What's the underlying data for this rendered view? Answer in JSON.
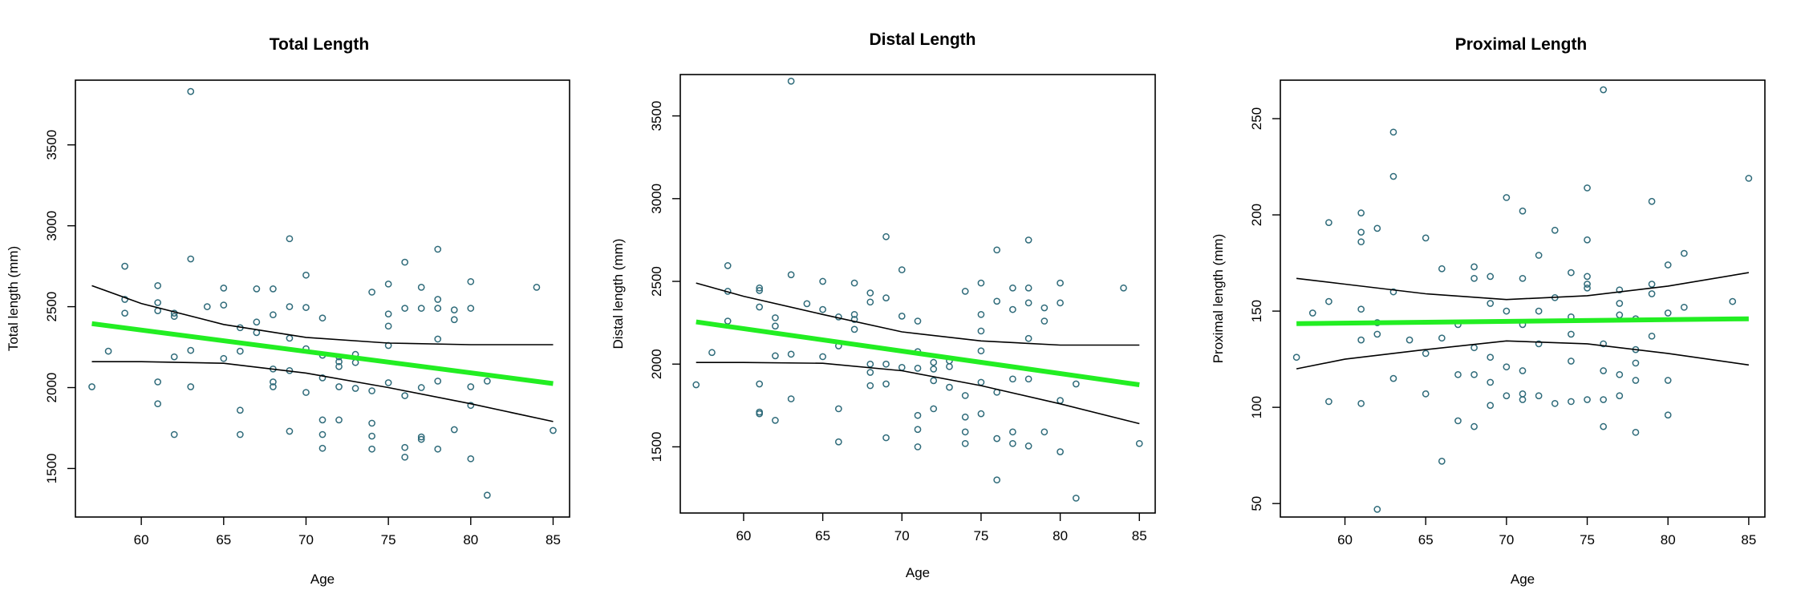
{
  "chart_data": [
    {
      "type": "scatter",
      "title": "Total Length",
      "xlabel": "Age",
      "ylabel": "Total length (mm)",
      "xlim": [
        56,
        86
      ],
      "ylim": [
        1200,
        3900
      ],
      "xticks": [
        60,
        65,
        70,
        75,
        80,
        85
      ],
      "yticks": [
        1500,
        2000,
        2500,
        3000,
        3500
      ],
      "point_color": "#2f6b7a",
      "fit_color": "#22ee22",
      "fit": {
        "x": [
          57,
          85
        ],
        "y": [
          2395,
          2025
        ]
      },
      "ci_upper": {
        "x": [
          57,
          60,
          65,
          70,
          75,
          80,
          85
        ],
        "y": [
          2630,
          2520,
          2390,
          2310,
          2275,
          2265,
          2265
        ]
      },
      "ci_lower": {
        "x": [
          57,
          60,
          65,
          70,
          75,
          80,
          85
        ],
        "y": [
          2160,
          2160,
          2150,
          2090,
          2000,
          1900,
          1790
        ]
      },
      "points": [
        [
          57,
          2005
        ],
        [
          58,
          2225
        ],
        [
          59,
          2750
        ],
        [
          59,
          2545
        ],
        [
          59,
          2460
        ],
        [
          61,
          2630
        ],
        [
          61,
          2525
        ],
        [
          61,
          2475
        ],
        [
          61,
          2035
        ],
        [
          61,
          1900
        ],
        [
          62,
          2460
        ],
        [
          62,
          2440
        ],
        [
          62,
          2190
        ],
        [
          62,
          1710
        ],
        [
          63,
          3830
        ],
        [
          63,
          2795
        ],
        [
          63,
          2230
        ],
        [
          63,
          2005
        ],
        [
          64,
          2500
        ],
        [
          65,
          2615
        ],
        [
          65,
          2510
        ],
        [
          65,
          2180
        ],
        [
          66,
          2370
        ],
        [
          66,
          2225
        ],
        [
          66,
          1860
        ],
        [
          66,
          1710
        ],
        [
          67,
          2610
        ],
        [
          67,
          2405
        ],
        [
          67,
          2340
        ],
        [
          68,
          2610
        ],
        [
          68,
          2450
        ],
        [
          68,
          2115
        ],
        [
          68,
          2035
        ],
        [
          68,
          2005
        ],
        [
          69,
          2920
        ],
        [
          69,
          2500
        ],
        [
          69,
          2305
        ],
        [
          69,
          2105
        ],
        [
          69,
          1730
        ],
        [
          70,
          2695
        ],
        [
          70,
          2495
        ],
        [
          70,
          2240
        ],
        [
          70,
          1970
        ],
        [
          71,
          2430
        ],
        [
          71,
          2200
        ],
        [
          71,
          2060
        ],
        [
          71,
          1800
        ],
        [
          71,
          1710
        ],
        [
          71,
          1625
        ],
        [
          72,
          2190
        ],
        [
          72,
          2160
        ],
        [
          72,
          2130
        ],
        [
          72,
          2005
        ],
        [
          72,
          1800
        ],
        [
          73,
          2205
        ],
        [
          73,
          2155
        ],
        [
          73,
          1995
        ],
        [
          74,
          2590
        ],
        [
          74,
          1980
        ],
        [
          74,
          1780
        ],
        [
          74,
          1700
        ],
        [
          74,
          1620
        ],
        [
          75,
          2640
        ],
        [
          75,
          2455
        ],
        [
          75,
          2380
        ],
        [
          75,
          2260
        ],
        [
          75,
          2030
        ],
        [
          76,
          2775
        ],
        [
          76,
          2490
        ],
        [
          76,
          1950
        ],
        [
          76,
          1630
        ],
        [
          76,
          1570
        ],
        [
          77,
          2620
        ],
        [
          77,
          2490
        ],
        [
          77,
          2000
        ],
        [
          77,
          1695
        ],
        [
          77,
          1680
        ],
        [
          78,
          2855
        ],
        [
          78,
          2545
        ],
        [
          78,
          2490
        ],
        [
          78,
          2300
        ],
        [
          78,
          2040
        ],
        [
          78,
          1620
        ],
        [
          79,
          2480
        ],
        [
          79,
          2420
        ],
        [
          79,
          1740
        ],
        [
          80,
          2655
        ],
        [
          80,
          2490
        ],
        [
          80,
          2005
        ],
        [
          80,
          1890
        ],
        [
          80,
          1560
        ],
        [
          81,
          2040
        ],
        [
          81,
          1335
        ],
        [
          84,
          2620
        ],
        [
          85,
          1735
        ]
      ]
    },
    {
      "type": "scatter",
      "title": "Distal Length",
      "xlabel": "Age",
      "ylabel": "Distal length (mm)",
      "xlim": [
        56,
        86
      ],
      "ylim": [
        1100,
        3750
      ],
      "xticks": [
        60,
        65,
        70,
        75,
        80,
        85
      ],
      "yticks": [
        1500,
        2000,
        2500,
        3000,
        3500
      ],
      "point_color": "#2f6b7a",
      "fit_color": "#22ee22",
      "fit": {
        "x": [
          57,
          85
        ],
        "y": [
          2255,
          1875
        ]
      },
      "ci_upper": {
        "x": [
          57,
          60,
          65,
          70,
          75,
          80,
          85
        ],
        "y": [
          2490,
          2410,
          2300,
          2195,
          2140,
          2115,
          2115
        ]
      },
      "ci_lower": {
        "x": [
          57,
          60,
          65,
          70,
          75,
          80,
          85
        ],
        "y": [
          2010,
          2010,
          2005,
          1960,
          1870,
          1760,
          1640
        ]
      },
      "points": [
        [
          57,
          1875
        ],
        [
          58,
          2070
        ],
        [
          59,
          2595
        ],
        [
          59,
          2440
        ],
        [
          59,
          2260
        ],
        [
          61,
          2460
        ],
        [
          61,
          2445
        ],
        [
          61,
          2345
        ],
        [
          61,
          1880
        ],
        [
          61,
          1710
        ],
        [
          61,
          1700
        ],
        [
          62,
          2280
        ],
        [
          62,
          2230
        ],
        [
          62,
          2050
        ],
        [
          62,
          1660
        ],
        [
          63,
          3710
        ],
        [
          63,
          2540
        ],
        [
          63,
          2060
        ],
        [
          63,
          1790
        ],
        [
          64,
          2365
        ],
        [
          65,
          2500
        ],
        [
          65,
          2330
        ],
        [
          65,
          2045
        ],
        [
          66,
          2285
        ],
        [
          66,
          2110
        ],
        [
          66,
          1730
        ],
        [
          66,
          1530
        ],
        [
          67,
          2490
        ],
        [
          67,
          2300
        ],
        [
          67,
          2270
        ],
        [
          67,
          2210
        ],
        [
          68,
          2430
        ],
        [
          68,
          2375
        ],
        [
          68,
          2000
        ],
        [
          68,
          1950
        ],
        [
          68,
          1870
        ],
        [
          69,
          2770
        ],
        [
          69,
          2400
        ],
        [
          69,
          2000
        ],
        [
          69,
          1880
        ],
        [
          69,
          1555
        ],
        [
          70,
          2570
        ],
        [
          70,
          2290
        ],
        [
          70,
          1980
        ],
        [
          71,
          2260
        ],
        [
          71,
          2075
        ],
        [
          71,
          1975
        ],
        [
          71,
          1690
        ],
        [
          71,
          1605
        ],
        [
          71,
          1500
        ],
        [
          72,
          2010
        ],
        [
          72,
          1970
        ],
        [
          72,
          1900
        ],
        [
          72,
          1730
        ],
        [
          73,
          2020
        ],
        [
          73,
          1985
        ],
        [
          73,
          1860
        ],
        [
          74,
          2440
        ],
        [
          74,
          1810
        ],
        [
          74,
          1680
        ],
        [
          74,
          1590
        ],
        [
          74,
          1520
        ],
        [
          75,
          2490
        ],
        [
          75,
          2300
        ],
        [
          75,
          2200
        ],
        [
          75,
          2080
        ],
        [
          75,
          1890
        ],
        [
          75,
          1700
        ],
        [
          76,
          2690
        ],
        [
          76,
          2380
        ],
        [
          76,
          1830
        ],
        [
          76,
          1550
        ],
        [
          76,
          1300
        ],
        [
          77,
          2460
        ],
        [
          77,
          2330
        ],
        [
          77,
          1910
        ],
        [
          77,
          1590
        ],
        [
          77,
          1520
        ],
        [
          78,
          2750
        ],
        [
          78,
          2460
        ],
        [
          78,
          2370
        ],
        [
          78,
          2155
        ],
        [
          78,
          1910
        ],
        [
          78,
          1505
        ],
        [
          79,
          2340
        ],
        [
          79,
          2260
        ],
        [
          79,
          1590
        ],
        [
          80,
          2490
        ],
        [
          80,
          2370
        ],
        [
          80,
          1780
        ],
        [
          80,
          1470
        ],
        [
          81,
          1880
        ],
        [
          81,
          1190
        ],
        [
          84,
          2460
        ],
        [
          85,
          1520
        ]
      ]
    },
    {
      "type": "scatter",
      "title": "Proximal Length",
      "xlabel": "Age",
      "ylabel": "Proximal length (mm)",
      "xlim": [
        56,
        86
      ],
      "ylim": [
        43,
        270
      ],
      "xticks": [
        60,
        65,
        70,
        75,
        80,
        85
      ],
      "yticks": [
        50,
        100,
        150,
        200,
        250
      ],
      "point_color": "#2f6b7a",
      "fit_color": "#22ee22",
      "fit": {
        "x": [
          57,
          85
        ],
        "y": [
          143.5,
          146
        ]
      },
      "ci_upper": {
        "x": [
          57,
          60,
          65,
          70,
          75,
          80,
          85
        ],
        "y": [
          167,
          164,
          159,
          156,
          158,
          163,
          170
        ]
      },
      "ci_lower": {
        "x": [
          57,
          60,
          65,
          70,
          75,
          80,
          85
        ],
        "y": [
          120,
          125,
          130,
          134.5,
          133,
          128,
          122
        ]
      },
      "points": [
        [
          57,
          126
        ],
        [
          58,
          149
        ],
        [
          59,
          196
        ],
        [
          59,
          155
        ],
        [
          59,
          103
        ],
        [
          61,
          201
        ],
        [
          61,
          191
        ],
        [
          61,
          186
        ],
        [
          61,
          151
        ],
        [
          61,
          135
        ],
        [
          61,
          102
        ],
        [
          62,
          193
        ],
        [
          62,
          144
        ],
        [
          62,
          138
        ],
        [
          62,
          47
        ],
        [
          63,
          243
        ],
        [
          63,
          220
        ],
        [
          63,
          160
        ],
        [
          63,
          115
        ],
        [
          64,
          135
        ],
        [
          65,
          188
        ],
        [
          65,
          128
        ],
        [
          65,
          107
        ],
        [
          66,
          172
        ],
        [
          66,
          136
        ],
        [
          66,
          72
        ],
        [
          67,
          143
        ],
        [
          67,
          117
        ],
        [
          67,
          93
        ],
        [
          68,
          173
        ],
        [
          68,
          167
        ],
        [
          68,
          131
        ],
        [
          68,
          117
        ],
        [
          68,
          90
        ],
        [
          69,
          168
        ],
        [
          69,
          154
        ],
        [
          69,
          126
        ],
        [
          69,
          113
        ],
        [
          69,
          101
        ],
        [
          70,
          209
        ],
        [
          70,
          150
        ],
        [
          70,
          121
        ],
        [
          70,
          106
        ],
        [
          71,
          202
        ],
        [
          71,
          167
        ],
        [
          71,
          143
        ],
        [
          71,
          119
        ],
        [
          71,
          107
        ],
        [
          71,
          104
        ],
        [
          72,
          179
        ],
        [
          72,
          150
        ],
        [
          72,
          133
        ],
        [
          72,
          106
        ],
        [
          73,
          192
        ],
        [
          73,
          157
        ],
        [
          73,
          102
        ],
        [
          74,
          170
        ],
        [
          74,
          147
        ],
        [
          74,
          138
        ],
        [
          74,
          124
        ],
        [
          74,
          103
        ],
        [
          75,
          214
        ],
        [
          75,
          187
        ],
        [
          75,
          168
        ],
        [
          75,
          164
        ],
        [
          75,
          162
        ],
        [
          75,
          104
        ],
        [
          76,
          265
        ],
        [
          76,
          133
        ],
        [
          76,
          119
        ],
        [
          76,
          104
        ],
        [
          76,
          90
        ],
        [
          77,
          161
        ],
        [
          77,
          154
        ],
        [
          77,
          148
        ],
        [
          77,
          117
        ],
        [
          77,
          106
        ],
        [
          78,
          146
        ],
        [
          78,
          130
        ],
        [
          78,
          123
        ],
        [
          78,
          114
        ],
        [
          78,
          87
        ],
        [
          79,
          207
        ],
        [
          79,
          164
        ],
        [
          79,
          159
        ],
        [
          79,
          137
        ],
        [
          80,
          174
        ],
        [
          80,
          149
        ],
        [
          80,
          114
        ],
        [
          80,
          96
        ],
        [
          81,
          180
        ],
        [
          81,
          152
        ],
        [
          84,
          155
        ],
        [
          85,
          219
        ]
      ]
    }
  ]
}
